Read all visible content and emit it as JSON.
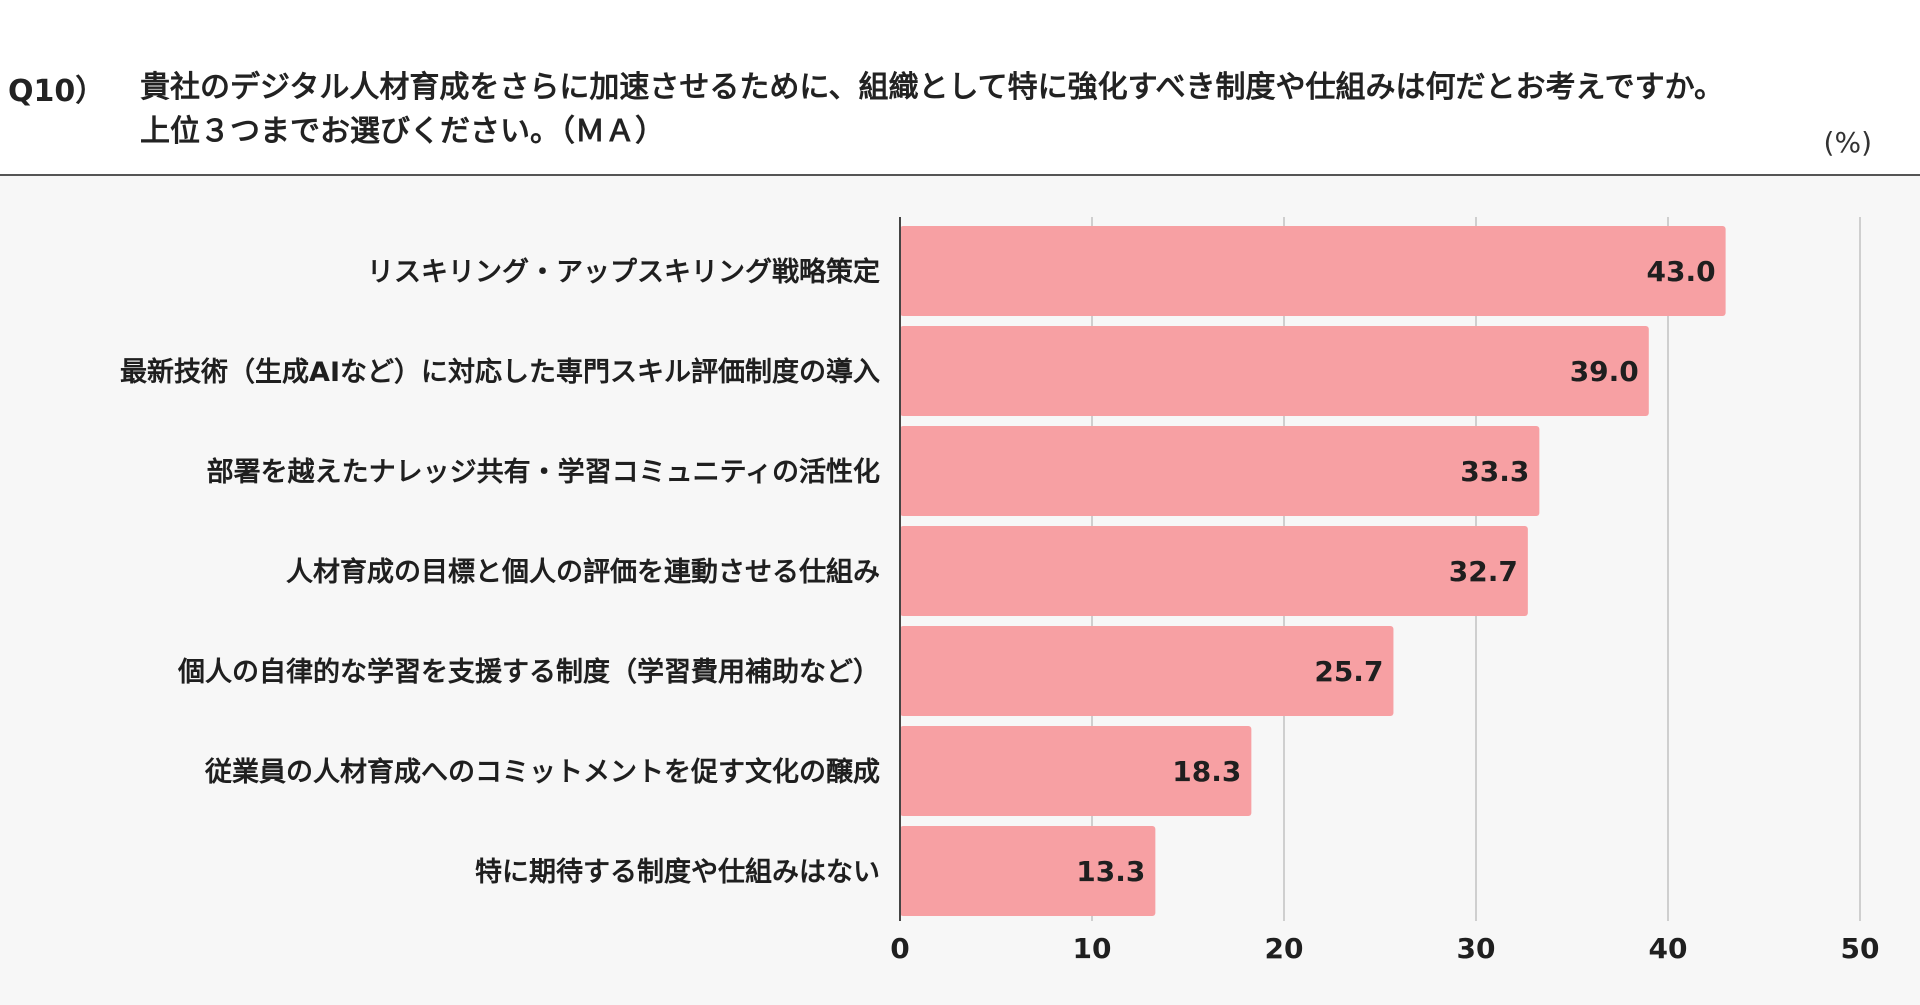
{
  "question": {
    "number": "Q10）",
    "line1": "貴社のデジタル人材育成をさらに加速させるために、組織として特に強化すべき制度や仕組みは何だとお考えですか。",
    "line2": "上位３つまでお選びください。（ＭＡ）"
  },
  "unit_label": "(%)",
  "colors": {
    "bar": "#f7a0a3",
    "grid": "#cfcfcf",
    "axis": "#444444",
    "background": "#f7f7f7"
  },
  "chart_data": {
    "type": "bar",
    "orientation": "horizontal",
    "categories": [
      "リスキリング・アップスキリング戦略策定",
      "最新技術（生成AIなど）に対応した専門スキル評価制度の導入",
      "部署を越えたナレッジ共有・学習コミュニティの活性化",
      "人材育成の目標と個人の評価を連動させる仕組み",
      "個人の自律的な学習を支援する制度（学習費用補助など）",
      "従業員の人材育成へのコミットメントを促す文化の醸成",
      "特に期待する制度や仕組みはない"
    ],
    "values": [
      43.0,
      39.0,
      33.3,
      32.7,
      25.7,
      18.3,
      13.3
    ],
    "value_labels": [
      "43.0",
      "39.0",
      "33.3",
      "32.7",
      "25.7",
      "18.3",
      "13.3"
    ],
    "xlim": [
      0,
      50
    ],
    "xticks": [
      0,
      10,
      20,
      30,
      40,
      50
    ],
    "xtick_labels": [
      "0",
      "10",
      "20",
      "30",
      "40",
      "50"
    ],
    "grid": true
  }
}
